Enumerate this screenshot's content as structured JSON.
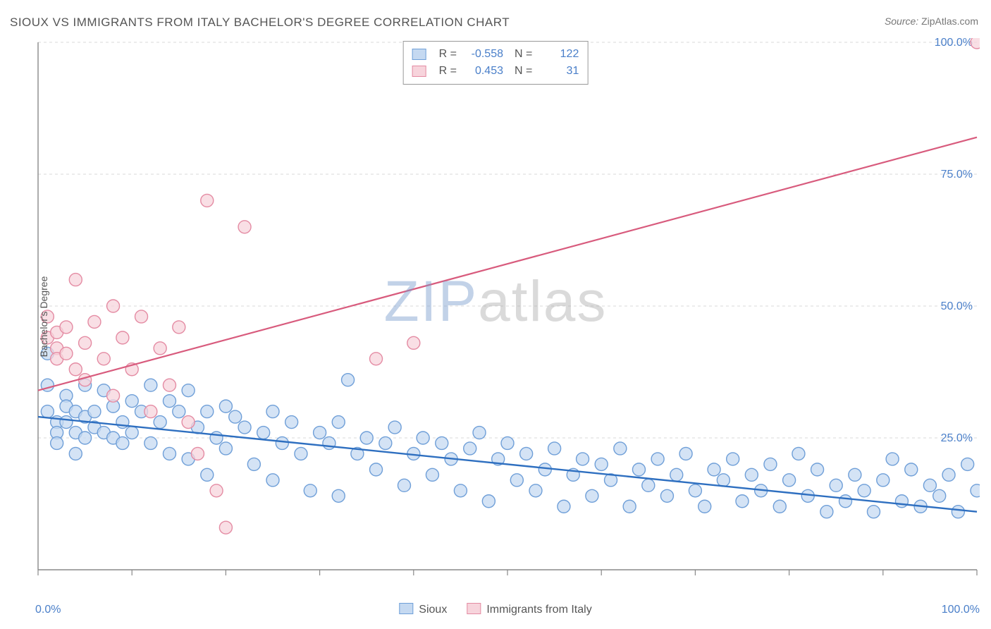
{
  "title": "SIOUX VS IMMIGRANTS FROM ITALY BACHELOR'S DEGREE CORRELATION CHART",
  "source": {
    "label": "Source:",
    "value": "ZipAtlas.com"
  },
  "ylabel": "Bachelor's Degree",
  "watermark": {
    "left": "ZIP",
    "right": "atlas"
  },
  "chart": {
    "type": "scatter",
    "background_color": "#ffffff",
    "grid_color": "#d9d9d9",
    "axis_color": "#888888",
    "tick_color": "#888888",
    "xlim": [
      0,
      100
    ],
    "ylim": [
      0,
      100
    ],
    "xtick_positions": [
      0,
      10,
      20,
      30,
      40,
      50,
      60,
      70,
      80,
      90,
      100
    ],
    "ytick_positions": [
      0,
      25,
      50,
      75,
      100
    ],
    "ytick_labels": [
      "0.0%",
      "25.0%",
      "50.0%",
      "75.0%",
      "100.0%"
    ],
    "x_axis_labels": {
      "left": "0.0%",
      "right": "100.0%"
    },
    "ylabel_color": "#4a7fc9",
    "marker_radius": 9,
    "marker_stroke_width": 1.4,
    "series": [
      {
        "key": "sioux",
        "label": "Sioux",
        "fill": "#c5d9f1",
        "stroke": "#6f9fd8",
        "trend": {
          "x1": 0,
          "y1": 29,
          "x2": 100,
          "y2": 11,
          "color": "#2e6fc0",
          "width": 2.4
        },
        "stats": {
          "R": "-0.558",
          "N": "122"
        },
        "points": [
          [
            1,
            41
          ],
          [
            1,
            35
          ],
          [
            1,
            30
          ],
          [
            2,
            28
          ],
          [
            2,
            26
          ],
          [
            2,
            24
          ],
          [
            3,
            33
          ],
          [
            3,
            31
          ],
          [
            3,
            28
          ],
          [
            4,
            30
          ],
          [
            4,
            26
          ],
          [
            4,
            22
          ],
          [
            5,
            35
          ],
          [
            5,
            29
          ],
          [
            5,
            25
          ],
          [
            6,
            30
          ],
          [
            6,
            27
          ],
          [
            7,
            34
          ],
          [
            7,
            26
          ],
          [
            8,
            31
          ],
          [
            8,
            25
          ],
          [
            9,
            28
          ],
          [
            9,
            24
          ],
          [
            10,
            32
          ],
          [
            10,
            26
          ],
          [
            11,
            30
          ],
          [
            12,
            35
          ],
          [
            12,
            24
          ],
          [
            13,
            28
          ],
          [
            14,
            32
          ],
          [
            14,
            22
          ],
          [
            15,
            30
          ],
          [
            16,
            34
          ],
          [
            16,
            21
          ],
          [
            17,
            27
          ],
          [
            18,
            30
          ],
          [
            18,
            18
          ],
          [
            19,
            25
          ],
          [
            20,
            31
          ],
          [
            20,
            23
          ],
          [
            21,
            29
          ],
          [
            22,
            27
          ],
          [
            23,
            20
          ],
          [
            24,
            26
          ],
          [
            25,
            30
          ],
          [
            25,
            17
          ],
          [
            26,
            24
          ],
          [
            27,
            28
          ],
          [
            28,
            22
          ],
          [
            29,
            15
          ],
          [
            30,
            26
          ],
          [
            31,
            24
          ],
          [
            32,
            28
          ],
          [
            32,
            14
          ],
          [
            33,
            36
          ],
          [
            34,
            22
          ],
          [
            35,
            25
          ],
          [
            36,
            19
          ],
          [
            37,
            24
          ],
          [
            38,
            27
          ],
          [
            39,
            16
          ],
          [
            40,
            22
          ],
          [
            41,
            25
          ],
          [
            42,
            18
          ],
          [
            43,
            24
          ],
          [
            44,
            21
          ],
          [
            45,
            15
          ],
          [
            46,
            23
          ],
          [
            47,
            26
          ],
          [
            48,
            13
          ],
          [
            49,
            21
          ],
          [
            50,
            24
          ],
          [
            51,
            17
          ],
          [
            52,
            22
          ],
          [
            53,
            15
          ],
          [
            54,
            19
          ],
          [
            55,
            23
          ],
          [
            56,
            12
          ],
          [
            57,
            18
          ],
          [
            58,
            21
          ],
          [
            59,
            14
          ],
          [
            60,
            20
          ],
          [
            61,
            17
          ],
          [
            62,
            23
          ],
          [
            63,
            12
          ],
          [
            64,
            19
          ],
          [
            65,
            16
          ],
          [
            66,
            21
          ],
          [
            67,
            14
          ],
          [
            68,
            18
          ],
          [
            69,
            22
          ],
          [
            70,
            15
          ],
          [
            71,
            12
          ],
          [
            72,
            19
          ],
          [
            73,
            17
          ],
          [
            74,
            21
          ],
          [
            75,
            13
          ],
          [
            76,
            18
          ],
          [
            77,
            15
          ],
          [
            78,
            20
          ],
          [
            79,
            12
          ],
          [
            80,
            17
          ],
          [
            81,
            22
          ],
          [
            82,
            14
          ],
          [
            83,
            19
          ],
          [
            84,
            11
          ],
          [
            85,
            16
          ],
          [
            86,
            13
          ],
          [
            87,
            18
          ],
          [
            88,
            15
          ],
          [
            89,
            11
          ],
          [
            90,
            17
          ],
          [
            91,
            21
          ],
          [
            92,
            13
          ],
          [
            93,
            19
          ],
          [
            94,
            12
          ],
          [
            95,
            16
          ],
          [
            96,
            14
          ],
          [
            97,
            18
          ],
          [
            98,
            11
          ],
          [
            99,
            20
          ],
          [
            100,
            15
          ]
        ]
      },
      {
        "key": "italy",
        "label": "Immigrants from Italy",
        "fill": "#f7d4dc",
        "stroke": "#e48ba3",
        "trend": {
          "x1": 0,
          "y1": 34,
          "x2": 100,
          "y2": 82,
          "color": "#d85b7d",
          "width": 2.2
        },
        "stats": {
          "R": "0.453",
          "N": "31"
        },
        "points": [
          [
            1,
            48
          ],
          [
            1,
            44
          ],
          [
            2,
            45
          ],
          [
            2,
            42
          ],
          [
            2,
            40
          ],
          [
            3,
            46
          ],
          [
            3,
            41
          ],
          [
            4,
            55
          ],
          [
            4,
            38
          ],
          [
            5,
            43
          ],
          [
            5,
            36
          ],
          [
            6,
            47
          ],
          [
            7,
            40
          ],
          [
            8,
            50
          ],
          [
            8,
            33
          ],
          [
            9,
            44
          ],
          [
            10,
            38
          ],
          [
            11,
            48
          ],
          [
            12,
            30
          ],
          [
            13,
            42
          ],
          [
            14,
            35
          ],
          [
            15,
            46
          ],
          [
            16,
            28
          ],
          [
            17,
            22
          ],
          [
            18,
            70
          ],
          [
            19,
            15
          ],
          [
            20,
            8
          ],
          [
            22,
            65
          ],
          [
            36,
            40
          ],
          [
            40,
            43
          ],
          [
            100,
            100
          ]
        ]
      }
    ]
  },
  "bottom_legend": [
    {
      "key": "sioux",
      "label": "Sioux"
    },
    {
      "key": "italy",
      "label": "Immigrants from Italy"
    }
  ],
  "top_legend_labels": {
    "R": "R =",
    "N": "N ="
  }
}
